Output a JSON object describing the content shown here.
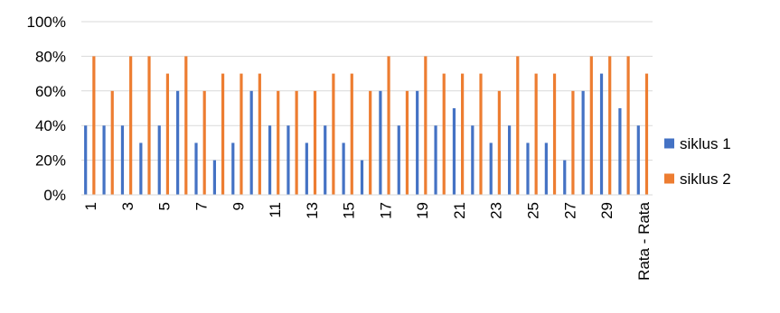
{
  "chart_data": {
    "type": "bar",
    "categories": [
      "1",
      "2",
      "3",
      "4",
      "5",
      "6",
      "7",
      "8",
      "9",
      "10",
      "11",
      "12",
      "13",
      "14",
      "15",
      "16",
      "17",
      "18",
      "19",
      "20",
      "21",
      "22",
      "23",
      "24",
      "25",
      "26",
      "27",
      "28",
      "29",
      "30",
      "Rata - Rata"
    ],
    "shown_x_labels": [
      "1",
      "3",
      "5",
      "7",
      "9",
      "11",
      "13",
      "15",
      "17",
      "19",
      "21",
      "23",
      "25",
      "27",
      "29",
      "Rata - Rata"
    ],
    "series": [
      {
        "name": "siklus 1",
        "color": "#4472C4",
        "values": [
          40,
          40,
          40,
          30,
          40,
          60,
          30,
          20,
          30,
          60,
          40,
          40,
          30,
          40,
          30,
          20,
          60,
          40,
          60,
          40,
          50,
          40,
          30,
          40,
          30,
          30,
          20,
          60,
          70,
          50,
          40
        ]
      },
      {
        "name": "siklus 2",
        "color": "#ED7D31",
        "values": [
          80,
          60,
          80,
          80,
          70,
          80,
          60,
          70,
          70,
          70,
          60,
          60,
          60,
          70,
          70,
          60,
          80,
          60,
          80,
          70,
          70,
          70,
          60,
          80,
          70,
          70,
          60,
          80,
          80,
          80,
          70
        ]
      }
    ],
    "y_ticks": [
      "0%",
      "20%",
      "40%",
      "60%",
      "80%",
      "100%"
    ],
    "ylim": [
      0,
      100
    ],
    "grid": true,
    "legend_position": "right"
  }
}
